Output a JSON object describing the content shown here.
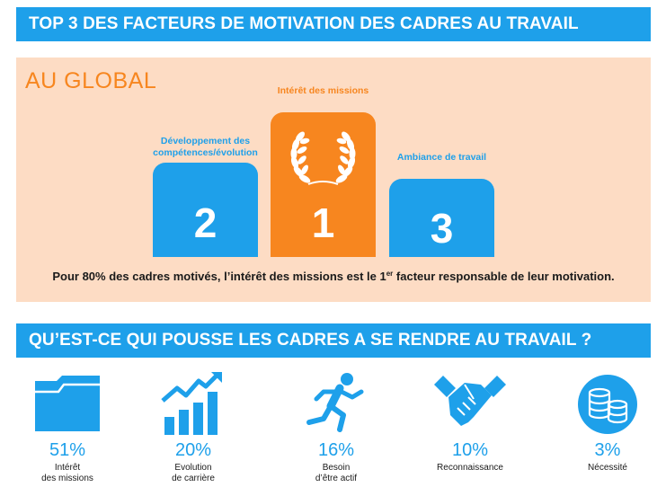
{
  "banner_top": "TOP 3 DES FACTEURS DE MOTIVATION DES CADRES AU TRAVAIL",
  "global": {
    "title": "AU GLOBAL",
    "podium": [
      {
        "rank": "1",
        "label": "Intérêt des missions"
      },
      {
        "rank": "2",
        "label": "Développement des compétences/évolution"
      },
      {
        "rank": "3",
        "label": "Ambiance de travail"
      }
    ],
    "footnote_before": "Pour 80% des cadres motivés, l’intérêt des missions est le 1",
    "footnote_sup": "er",
    "footnote_after": " facteur responsable de leur motivation."
  },
  "banner_bottom": "QU’EST-CE QUI POUSSE LES CADRES A SE RENDRE AU TRAVAIL ?",
  "stats": [
    {
      "value": "51%",
      "label_1": "Intérêt",
      "label_2": "des missions",
      "icon": "folder-icon"
    },
    {
      "value": "20%",
      "label_1": "Evolution",
      "label_2": "de carrière",
      "icon": "growth-chart-icon"
    },
    {
      "value": "16%",
      "label_1": "Besoin",
      "label_2": "d’être actif",
      "icon": "runner-icon"
    },
    {
      "value": "10%",
      "label_1": "Reconnaissance",
      "label_2": "",
      "icon": "handshake-icon"
    },
    {
      "value": "3%",
      "label_1": "Nécessité",
      "label_2": "",
      "icon": "coins-icon"
    }
  ],
  "colors": {
    "blue": "#1ea0ea",
    "orange": "#f7861f",
    "peach": "#fddcc4",
    "text": "#1a1a1a"
  }
}
